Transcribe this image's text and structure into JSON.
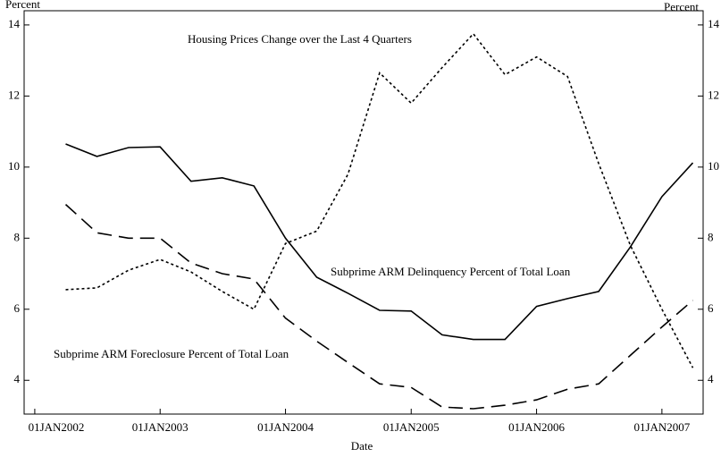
{
  "chart_data": {
    "type": "line",
    "xlabel": "Date",
    "ylabel": "Percent",
    "y2label": "Percent",
    "x": [
      "2002-04-01",
      "2002-07-01",
      "2002-10-01",
      "2003-01-01",
      "2003-04-01",
      "2003-07-01",
      "2003-10-01",
      "2004-01-01",
      "2004-04-01",
      "2004-07-01",
      "2004-10-01",
      "2005-01-01",
      "2005-04-01",
      "2005-07-01",
      "2005-10-01",
      "2006-01-01",
      "2006-04-01",
      "2006-07-01",
      "2006-10-01",
      "2007-01-01",
      "2007-04-01"
    ],
    "series": [
      {
        "name": "Subprime ARM Delinquency Percent of Total Loan",
        "color": "#000000",
        "dash": "solid",
        "values": [
          10.65,
          10.3,
          10.55,
          10.57,
          9.6,
          9.7,
          9.47,
          8.0,
          6.9,
          6.45,
          5.97,
          5.95,
          5.28,
          5.15,
          5.15,
          6.08,
          6.3,
          6.5,
          7.75,
          9.17,
          10.12
        ]
      },
      {
        "name": "Subprime ARM Foreclosure Percent of Total Loan",
        "color": "#000000",
        "dash": "dashed",
        "values": [
          8.95,
          8.15,
          8.0,
          8.0,
          7.3,
          7.0,
          6.85,
          5.75,
          5.1,
          4.5,
          3.9,
          3.8,
          3.25,
          3.2,
          3.3,
          3.45,
          3.75,
          3.9,
          4.7,
          5.5,
          6.25
        ]
      },
      {
        "name": "Housing Prices Change over the Last 4 Quarters",
        "color": "#000000",
        "dash": "dotted",
        "values": [
          6.55,
          6.6,
          7.1,
          7.4,
          7.05,
          6.5,
          6.0,
          7.85,
          8.2,
          9.8,
          12.65,
          11.8,
          12.8,
          13.75,
          12.6,
          13.1,
          12.55,
          10.1,
          7.8,
          6.0,
          4.35
        ]
      }
    ],
    "xlim": [
      "2001-12-01",
      "2007-05-01"
    ],
    "xticks": [
      {
        "value": "2002-01-01",
        "label": "01JAN2002"
      },
      {
        "value": "2003-01-01",
        "label": "01JAN2003"
      },
      {
        "value": "2004-01-01",
        "label": "01JAN2004"
      },
      {
        "value": "2005-01-01",
        "label": "01JAN2005"
      },
      {
        "value": "2006-01-01",
        "label": "01JAN2006"
      },
      {
        "value": "2007-01-01",
        "label": "01JAN2007"
      }
    ],
    "ylim": [
      3.05,
      14.4
    ],
    "yticks": [
      4,
      6,
      8,
      10,
      12,
      14
    ]
  }
}
